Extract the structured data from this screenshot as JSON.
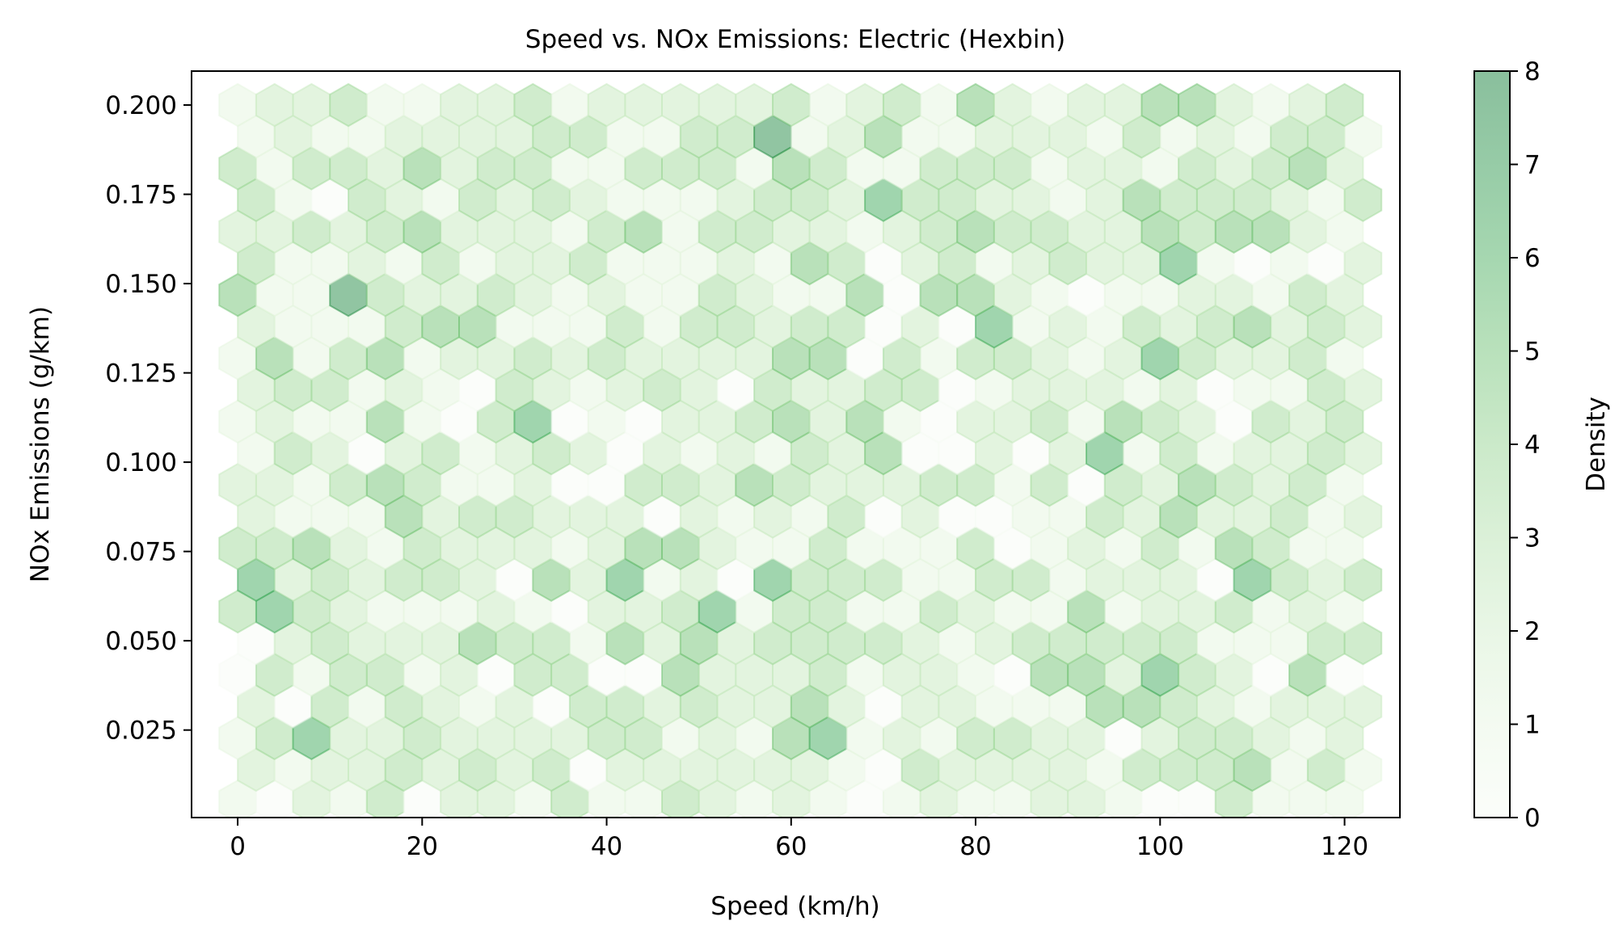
{
  "chart_data": {
    "type": "hexbin",
    "title": "Speed vs. NOx Emissions: Electric (Hexbin)",
    "xlabel": "Speed (km/h)",
    "ylabel": "NOx Emissions (g/km)",
    "xlim": [
      -5,
      126
    ],
    "ylim": [
      0.0005,
      0.2095
    ],
    "xticks": [
      0,
      20,
      40,
      60,
      80,
      100,
      120
    ],
    "xtick_labels": [
      "0",
      "20",
      "40",
      "60",
      "80",
      "100",
      "120"
    ],
    "yticks": [
      0.025,
      0.05,
      0.075,
      0.1,
      0.125,
      0.15,
      0.175,
      0.2
    ],
    "ytick_labels": [
      "0.025",
      "0.050",
      "0.075",
      "0.100",
      "0.125",
      "0.150",
      "0.175",
      "0.200"
    ],
    "grid": false,
    "colorbar": {
      "label": "Density",
      "min": 0,
      "max": 8,
      "ticks": [
        0,
        1,
        2,
        3,
        4,
        5,
        6,
        7,
        8
      ],
      "tick_labels": [
        "0",
        "1",
        "2",
        "3",
        "4",
        "5",
        "6",
        "7",
        "8"
      ],
      "colormap": "Greens",
      "alpha": 0.5
    },
    "hexbin": {
      "gridsize_x": 30,
      "x_range": [
        0,
        120
      ],
      "y_range": [
        0.005,
        0.2
      ],
      "rows": 23,
      "cols": 31,
      "counts": [
        "1021302213113212101211221003111",
        "2122323230222222103222213334131",
        "1352232222331214512133220233212",
        "2031321203323224202211144321222",
        "0313312033004222312210442532040",
        "0232224331424233332123333311133",
        "3532111210223513311321141223121",
        "5232332042512053331133122205323",
        "3342132221244211311130121314311",
        "2111423322202121302001132422312",
        "2213431120033243222331303243231",
        "1320231232021213240020251312232",
        "1211410350102234241022314320323",
        "2331210321232032233012221201132",
        "1413412232322224403133212532231",
        "2111344111313323302051213234232",
        "4116322321211321140442101122132",
        "3112131223111214302312322510102",
        "2232342221341332212343322434421",
        "3103213232111233253322124333213",
        "3133242331133314311333122132342",
        "1211222233113361241122213121331",
        "1223112231222223123142122442123"
      ]
    }
  }
}
